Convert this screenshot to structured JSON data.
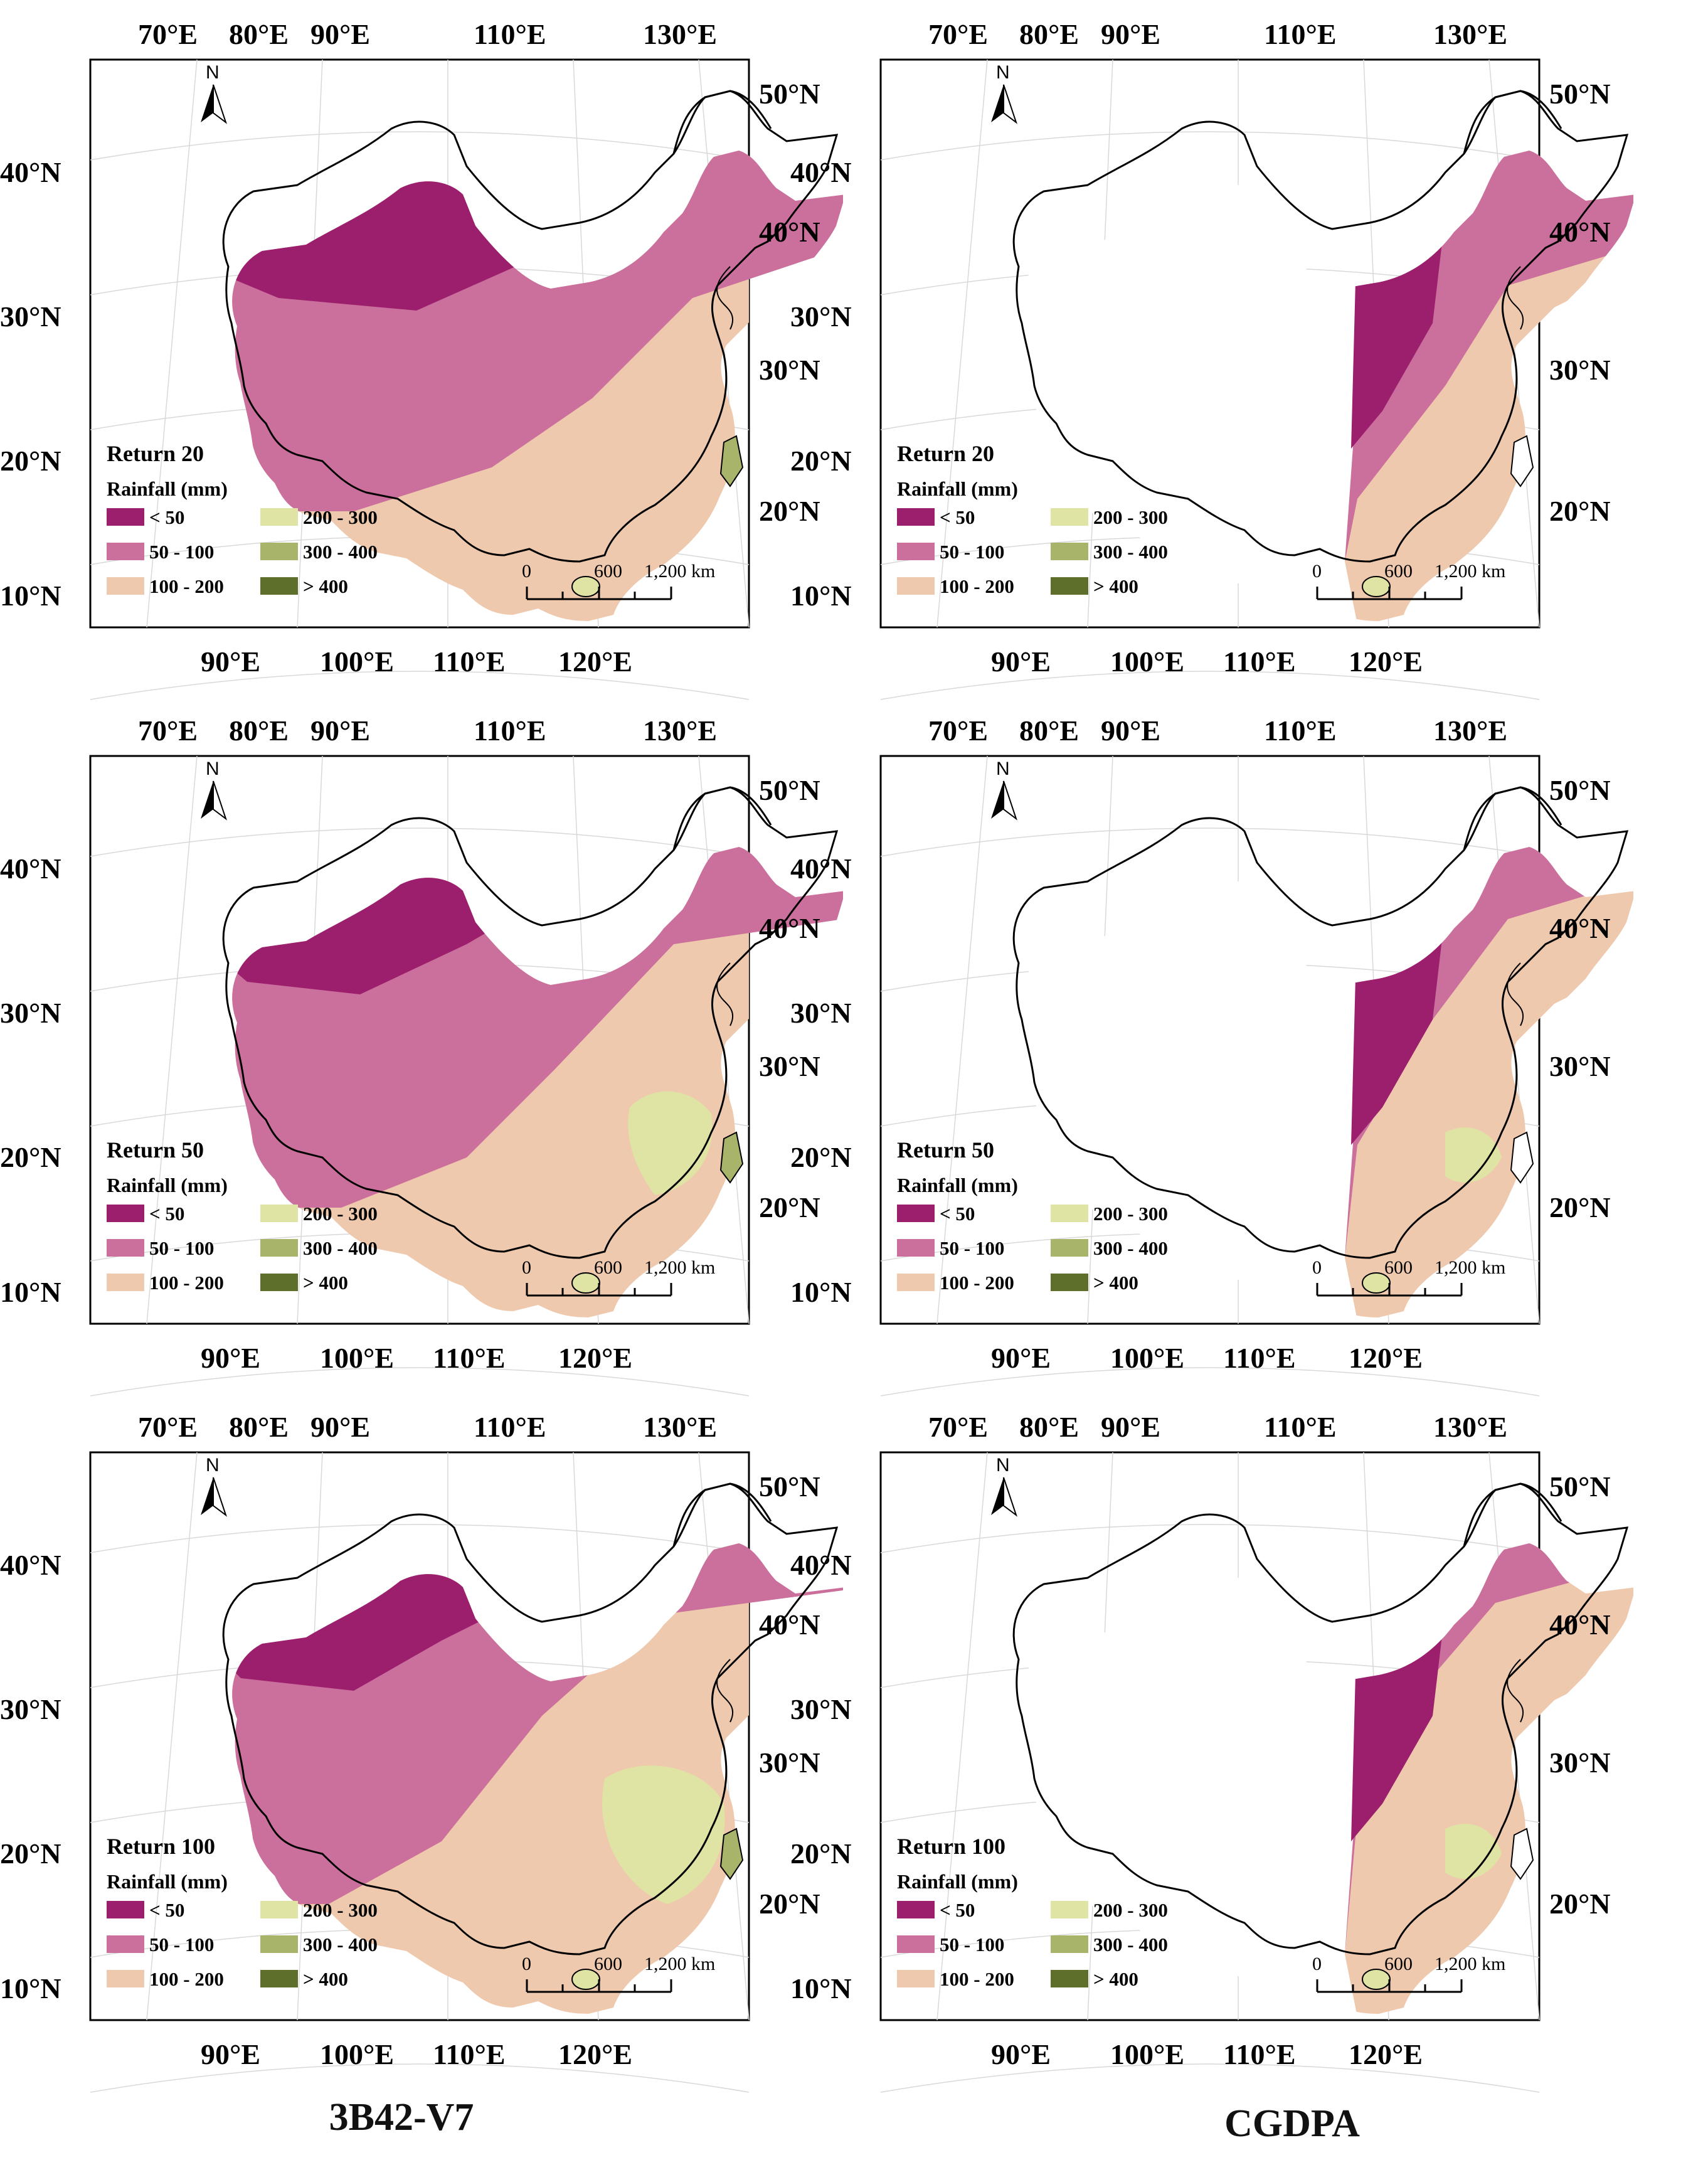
{
  "columns": [
    {
      "title": "3B42-V7"
    },
    {
      "title": "CGDPA"
    }
  ],
  "axes": {
    "top_lon_labels": [
      "70°E",
      "80°E",
      "90°E",
      "110°E",
      "130°E"
    ],
    "bottom_lon_labels": [
      "90°E",
      "100°E",
      "110°E",
      "120°E"
    ],
    "left_lat_labels": [
      "40°N",
      "30°N",
      "20°N",
      "10°N"
    ],
    "right_lat_labels": [
      "50°N",
      "40°N",
      "30°N",
      "20°N"
    ]
  },
  "north_arrow": {
    "label": "N",
    "icon": "north-arrow-icon"
  },
  "scale_bar": {
    "ticks": [
      "0",
      "600",
      "1,200 km"
    ]
  },
  "legend": {
    "heading": "Rainfall (mm)",
    "classes": [
      {
        "label": "< 50",
        "color": "#9c1f6e"
      },
      {
        "label": "50 - 100",
        "color": "#cb6f9c"
      },
      {
        "label": "100 - 200",
        "color": "#efc9ae"
      },
      {
        "label": "200 - 300",
        "color": "#dfe3a3"
      },
      {
        "label": "300 - 400",
        "color": "#a8b46a"
      },
      {
        "label": "> 400",
        "color": "#5e6f2b"
      }
    ]
  },
  "panels": [
    {
      "id": "p11",
      "return_label": "Return 20"
    },
    {
      "id": "p12",
      "return_label": "Return 20"
    },
    {
      "id": "p21",
      "return_label": "Return 50"
    },
    {
      "id": "p22",
      "return_label": "Return 50"
    },
    {
      "id": "p31",
      "return_label": "Return 100"
    },
    {
      "id": "p32",
      "return_label": "Return 100"
    }
  ]
}
